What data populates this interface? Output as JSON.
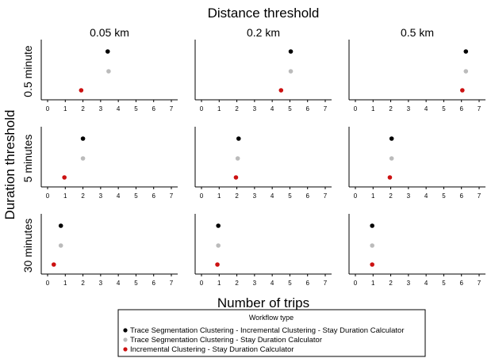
{
  "chart_data": {
    "type": "scatter",
    "title": "Distance threshold",
    "xlabel": "Number of trips",
    "ylabel": "Duration threshold",
    "column_labels": [
      "0.05 km",
      "0.2 km",
      "0.5 km"
    ],
    "row_labels": [
      "0.5 minute",
      "5 minutes",
      "30 minutes"
    ],
    "xlim": [
      0,
      7
    ],
    "xticks": [
      "0",
      "1",
      "2",
      "3",
      "4",
      "5",
      "6",
      "7"
    ],
    "grid": false,
    "legend": {
      "title": "Workflow type",
      "placement": "bottom-center",
      "entries": [
        "Trace Segmentation Clustering - Incremental Clustering - Stay Duration Calculator",
        "Trace Segmentation Clustering - Stay Duration Calculator",
        "Incremental Clustering - Stay Duration Calculator"
      ]
    },
    "series_colors": [
      "#000000",
      "#bbbbbb",
      "#cc1111"
    ],
    "panels": [
      {
        "row": 0,
        "col": 0,
        "values": [
          3.4,
          3.45,
          1.9
        ]
      },
      {
        "row": 0,
        "col": 1,
        "values": [
          5.05,
          5.05,
          4.5
        ]
      },
      {
        "row": 0,
        "col": 2,
        "values": [
          6.25,
          6.25,
          6.05
        ]
      },
      {
        "row": 1,
        "col": 0,
        "values": [
          2.0,
          2.0,
          0.95
        ]
      },
      {
        "row": 1,
        "col": 1,
        "values": [
          2.1,
          2.05,
          1.95
        ]
      },
      {
        "row": 1,
        "col": 2,
        "values": [
          2.05,
          2.05,
          1.95
        ]
      },
      {
        "row": 2,
        "col": 0,
        "values": [
          0.75,
          0.75,
          0.35
        ]
      },
      {
        "row": 2,
        "col": 1,
        "values": [
          0.95,
          0.95,
          0.9
        ]
      },
      {
        "row": 2,
        "col": 2,
        "values": [
          0.95,
          0.95,
          0.95
        ]
      }
    ]
  }
}
